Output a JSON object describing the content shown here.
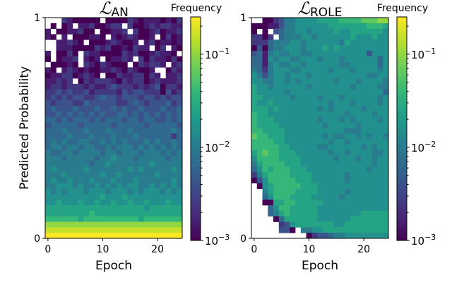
{
  "chart_data": [
    {
      "type": "heatmap",
      "title_main": "ℒ",
      "title_sub": "AN",
      "xlabel": "Epoch",
      "ylabel": "Predicted Probability",
      "xticks": [
        0,
        10,
        20
      ],
      "yticks": [
        "0",
        "1"
      ],
      "ylim": [
        0,
        1
      ],
      "n_epochs": 25,
      "n_bins": 40,
      "colorbar": {
        "label": "Frequency",
        "scale": "log",
        "range_log10": [
          -3,
          -0.6
        ],
        "ticks": [
          "10",
          "10",
          "10"
        ],
        "tick_exponents": [
          "−3",
          "−2",
          "−1"
        ],
        "tick_log10": [
          -3,
          -2,
          -1
        ]
      },
      "cell_encoding": {
        "empty": ".",
        "digits": "0123456789abc",
        "log10_min": -3,
        "log10_step": 0.2
      },
      "rows_top_to_bottom": [
        "...2100000.00002101110102",
        ".0.01.11200122.2001212211",
        "1.0011200.00112.200120112",
        "10.1.000110.10121001.0201",
        "..11210.000121001.1201101",
        "..11100002120010211.02.10",
        "1.0020.21100002120012110.",
        "0.0112.101.01121.20211020",
        ".00010.21021000.021221.12",
        "10.12101001121021001..021",
        "0112201210.0021122021.112",
        "11212.0212221021220121112",
        "1221222121123222121230221",
        "2232322312222132332220312",
        "2323233223433233323323233",
        "3233322433333223432333423",
        "3433343334334343343334334",
        "3343434343433443434343434",
        "4434344434344434434433434",
        "3444443444443444443444443",
        "4445444544454445444444454",
        "4444544454445444544444424",
        "4545445544545454445454454",
        "4554554554454555454545454",
        "5445545555455455545554545",
        "5554555554556555455555455",
        "5555555545565555555655555",
        "5655555655555556565555565",
        "5556555555655655555565555",
        "5655655565556555655555565",
        "5566656556565656655656565",
        "6565666566656665656665656",
        "6666666666766676666666666",
        "6676667667667667667666766",
        "7777777777777777776777777",
        "7777777787777777777777777",
        "8888887888888888878888888",
        "aaaaaaaaaaaaaaaaaaaaaaaaa",
        "bbbbbbbbbbbbbbbbbbbbbbbbb",
        "ccccccccccccccccccccccccc"
      ]
    },
    {
      "type": "heatmap",
      "title_main": "ℒ",
      "title_sub": "ROLE",
      "xlabel": "Epoch",
      "ylabel": "",
      "xticks": [
        0,
        10,
        20
      ],
      "yticks": [
        "0",
        "1"
      ],
      "ylim": [
        0,
        1
      ],
      "n_epochs": 25,
      "n_bins": 40,
      "colorbar": {
        "label": "Frequency",
        "scale": "log",
        "range_log10": [
          -3,
          -0.6
        ],
        "ticks": [
          "10",
          "10",
          "10"
        ],
        "tick_exponents": [
          "−3",
          "−2",
          "−1"
        ],
        "tick_log10": [
          -3,
          -2,
          -1
        ]
      },
      "cell_encoding": {
        "empty": ".",
        "digits": "0123456789abc",
        "log10_min": -3,
        "log10_step": 0.2
      },
      "rows_top_to_bottom": [
        "..002355666677778888999aa",
        "0001135566666677777778887",
        "0.0.345566566667667777776",
        "2202.45556656666667666766",
        "2224555665666666576666666",
        "0304556665666767666666666",
        "3415655665566666666663666",
        "4416566556665666566666646",
        "4415655665666666556666646",
        "5425666556666656665666656",
        "6535665666566666666665566",
        "6655665656666665666566665",
        "7665666666566666665666655",
        "7666665666666666666666664",
        "7766666566665666566666656",
        "7667666666666656665666656",
        "7776766666665656666656666",
        "8776666666666666656666566",
        "8777666666665666565666656",
        "8777766666666566666566666",
        "8877776666666666655566666",
        "9887776666666565566565665",
        "8888776666666656656666666",
        "8888877666665566666656566",
        "7898877766666656656666556",
        "6888877776666665666566566",
        "5788887776666666666666566",
        "4687888777666666666665666",
        "2578888777766666656666666",
        "0368888877766666656666666",
        ".067888887776666666666666",
        "..57888877776666656666666",
        "..46888777766666566666666",
        "..00778877777666666666666",
        "...4688777776666666666666",
        "...4578777776666666677777",
        "....0477777766666677 77777",
        ".....2367777777667777777 7",
        ".....330.55667777777777777",
        "..........023345566666666"
      ]
    }
  ]
}
